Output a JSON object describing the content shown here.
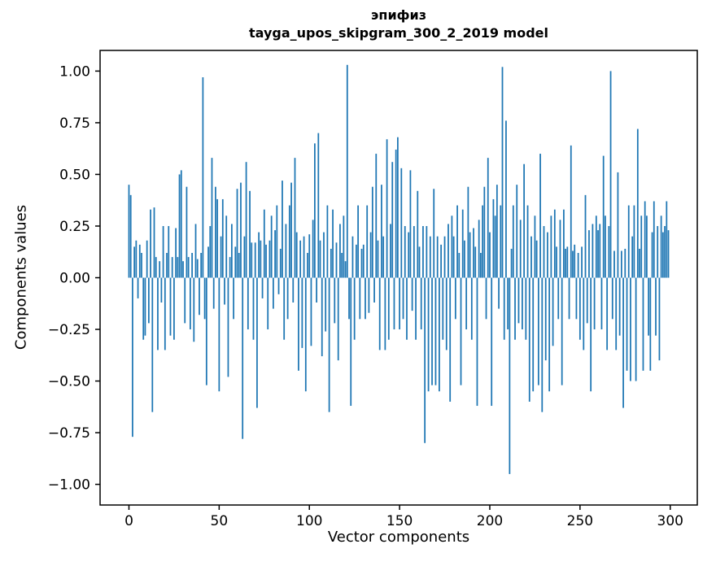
{
  "chart_data": {
    "type": "bar",
    "title": "эпифиз",
    "subtitle": "tayga_upos_skipgram_300_2_2019 model",
    "xlabel": "Vector components",
    "ylabel": "Components values",
    "bar_color": "#1f77b4",
    "frame_color": "#000000",
    "xlim": [
      -16,
      315
    ],
    "ylim": [
      -1.1,
      1.1
    ],
    "xticks": [
      0,
      50,
      100,
      150,
      200,
      250,
      300
    ],
    "yticks": [
      {
        "v": -1.0,
        "label": "−1.00"
      },
      {
        "v": -0.75,
        "label": "−0.75"
      },
      {
        "v": -0.5,
        "label": "−0.50"
      },
      {
        "v": -0.25,
        "label": "−0.25"
      },
      {
        "v": 0.0,
        "label": "0.00"
      },
      {
        "v": 0.25,
        "label": "0.25"
      },
      {
        "v": 0.5,
        "label": "0.50"
      },
      {
        "v": 0.75,
        "label": "0.75"
      },
      {
        "v": 1.0,
        "label": "1.00"
      }
    ],
    "x_start": 0,
    "values": [
      0.45,
      0.4,
      -0.77,
      0.15,
      0.18,
      -0.1,
      0.16,
      0.12,
      -0.3,
      -0.28,
      0.18,
      -0.22,
      0.33,
      -0.65,
      0.34,
      0.1,
      -0.35,
      0.08,
      -0.12,
      0.25,
      -0.35,
      0.12,
      0.25,
      -0.28,
      0.1,
      -0.3,
      0.24,
      0.1,
      0.5,
      0.52,
      0.08,
      -0.22,
      0.44,
      0.1,
      -0.25,
      0.12,
      -0.31,
      0.26,
      0.09,
      -0.18,
      0.12,
      0.97,
      -0.2,
      -0.52,
      0.15,
      0.25,
      0.58,
      -0.15,
      0.44,
      0.38,
      -0.55,
      0.2,
      0.38,
      -0.13,
      0.3,
      -0.48,
      0.1,
      0.26,
      -0.2,
      0.15,
      0.43,
      0.12,
      0.46,
      -0.78,
      0.2,
      0.56,
      -0.25,
      0.42,
      0.17,
      -0.3,
      0.17,
      -0.63,
      0.22,
      0.18,
      -0.1,
      0.33,
      0.16,
      -0.25,
      0.18,
      0.3,
      -0.15,
      0.23,
      0.35,
      -0.08,
      0.14,
      0.47,
      -0.3,
      0.26,
      -0.2,
      0.35,
      0.46,
      -0.12,
      0.58,
      0.22,
      -0.45,
      0.18,
      -0.34,
      0.2,
      -0.55,
      0.12,
      0.21,
      -0.33,
      0.28,
      0.65,
      -0.12,
      0.7,
      0.18,
      -0.38,
      0.22,
      -0.26,
      0.35,
      -0.65,
      0.14,
      0.33,
      -0.22,
      0.17,
      -0.4,
      0.26,
      0.12,
      0.3,
      0.08,
      1.03,
      -0.2,
      -0.62,
      0.2,
      -0.3,
      0.16,
      0.35,
      -0.2,
      0.14,
      0.16,
      -0.2,
      0.35,
      -0.17,
      0.22,
      0.44,
      -0.12,
      0.6,
      0.18,
      -0.35,
      0.45,
      0.2,
      -0.35,
      0.67,
      -0.3,
      0.26,
      0.56,
      -0.25,
      0.62,
      0.68,
      -0.25,
      0.53,
      -0.2,
      0.25,
      -0.3,
      0.22,
      0.52,
      -0.16,
      0.25,
      -0.3,
      0.42,
      0.15,
      -0.25,
      0.25,
      -0.8,
      0.25,
      -0.55,
      0.2,
      -0.52,
      0.43,
      -0.52,
      0.2,
      -0.55,
      0.16,
      -0.3,
      0.2,
      -0.35,
      0.26,
      -0.6,
      0.3,
      0.2,
      -0.2,
      0.35,
      0.12,
      -0.52,
      0.33,
      0.18,
      -0.25,
      0.44,
      0.22,
      -0.3,
      0.24,
      0.15,
      -0.62,
      0.28,
      0.12,
      0.35,
      0.44,
      -0.2,
      0.58,
      0.22,
      -0.62,
      0.38,
      0.3,
      0.45,
      -0.15,
      0.35,
      1.02,
      -0.3,
      0.76,
      -0.25,
      -0.95,
      0.14,
      0.35,
      -0.3,
      0.45,
      -0.22,
      0.28,
      -0.25,
      0.55,
      -0.3,
      0.35,
      -0.6,
      0.2,
      -0.55,
      0.3,
      0.18,
      -0.52,
      0.6,
      -0.65,
      0.25,
      -0.4,
      0.22,
      -0.55,
      0.3,
      -0.33,
      0.33,
      0.15,
      -0.2,
      0.28,
      -0.52,
      0.33,
      0.14,
      0.15,
      -0.2,
      0.64,
      0.13,
      0.16,
      -0.2,
      0.12,
      -0.3,
      0.15,
      -0.35,
      0.4,
      -0.22,
      0.23,
      -0.55,
      0.26,
      -0.25,
      0.3,
      0.23,
      0.26,
      -0.25,
      0.59,
      0.3,
      -0.35,
      0.25,
      1.0,
      -0.2,
      0.13,
      -0.35,
      0.51,
      -0.28,
      0.13,
      -0.63,
      0.14,
      -0.45,
      0.35,
      -0.5,
      0.2,
      0.35,
      -0.5,
      0.72,
      0.14,
      0.3,
      -0.45,
      0.37,
      0.3,
      -0.28,
      -0.45,
      0.22,
      0.37,
      -0.28,
      0.25,
      -0.4,
      0.3,
      0.22,
      0.25,
      0.37,
      0.23
    ]
  }
}
